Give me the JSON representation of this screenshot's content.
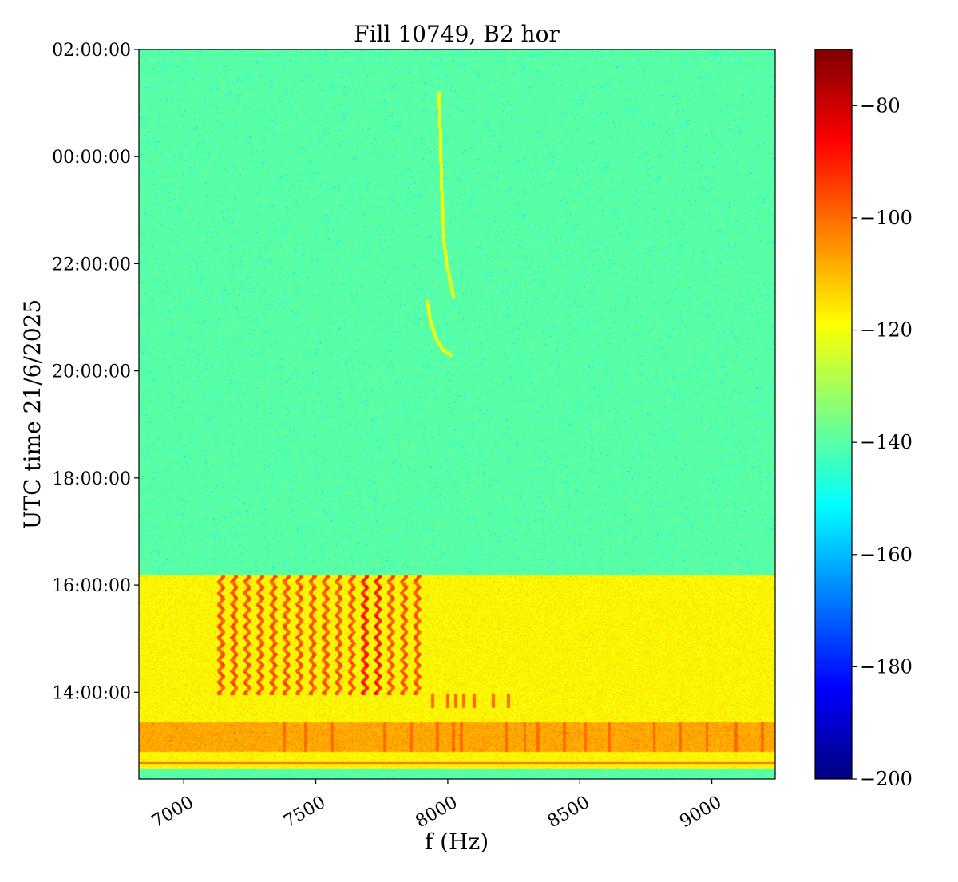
{
  "chart_data": {
    "type": "heatmap",
    "title": "Fill 10749, B2 hor",
    "xlabel": "f (Hz)",
    "ylabel": "UTC time 21/6/2025",
    "xlim": [
      6830,
      9240
    ],
    "ylim_hours": [
      12.38,
      26.0
    ],
    "x_ticks": [
      {
        "value": 7000,
        "label": "7000"
      },
      {
        "value": 7500,
        "label": "7500"
      },
      {
        "value": 8000,
        "label": "8000"
      },
      {
        "value": 8500,
        "label": "8500"
      },
      {
        "value": 9000,
        "label": "9000"
      }
    ],
    "y_ticks": [
      {
        "value": 14,
        "label": "14:00:00"
      },
      {
        "value": 16,
        "label": "16:00:00"
      },
      {
        "value": 18,
        "label": "18:00:00"
      },
      {
        "value": 20,
        "label": "20:00:00"
      },
      {
        "value": 22,
        "label": "22:00:00"
      },
      {
        "value": 24,
        "label": "00:00:00"
      },
      {
        "value": 26,
        "label": "02:00:00"
      }
    ],
    "colorbar": {
      "colormap": "jet",
      "range": [
        -200,
        -70
      ],
      "ticks": [
        {
          "value": -80,
          "label": "−80"
        },
        {
          "value": -100,
          "label": "−100"
        },
        {
          "value": -120,
          "label": "−120"
        },
        {
          "value": -140,
          "label": "−140"
        },
        {
          "value": -160,
          "label": "−160"
        },
        {
          "value": -180,
          "label": "−180"
        },
        {
          "value": -200,
          "label": "−200"
        }
      ]
    },
    "regions": [
      {
        "name": "quiet background",
        "t_from": 16.18,
        "t_to": 26.0,
        "level_db": -140
      },
      {
        "name": "beam-on band",
        "t_from": 12.55,
        "t_to": 16.18,
        "level_db": -118
      }
    ],
    "lines": {
      "f_start": 7140,
      "f_step": 49.5,
      "count": 16,
      "t_from": 13.95,
      "t_to": 16.18,
      "level_db": -95,
      "strong_f_from": 7650,
      "strong_f_to": 7760,
      "strong_level_db": -88
    },
    "trace": {
      "level_db": -120,
      "upper_segment": [
        [
          7965,
          25.2
        ],
        [
          7970,
          24.5
        ],
        [
          7975,
          23.5
        ],
        [
          7985,
          22.4
        ],
        [
          7995,
          22.0
        ],
        [
          8020,
          21.4
        ]
      ],
      "lower_segment": [
        [
          7920,
          21.3
        ],
        [
          7935,
          20.9
        ],
        [
          7955,
          20.6
        ],
        [
          7980,
          20.4
        ],
        [
          8010,
          20.3
        ]
      ]
    },
    "low_band": {
      "t_from": 12.9,
      "t_to": 13.45,
      "level_db": -108,
      "spike_f": [
        7380,
        7460,
        7560,
        7760,
        7860,
        7960,
        8020,
        8050,
        8220,
        8290,
        8340,
        8440,
        8520,
        8610,
        8780,
        8880,
        8980,
        9090,
        9190
      ],
      "spike_level_db": -100
    },
    "harmonics_1390": [
      7940,
      8000,
      8030,
      8060,
      8100,
      8170,
      8230
    ],
    "line_at_hours": 12.68
  }
}
